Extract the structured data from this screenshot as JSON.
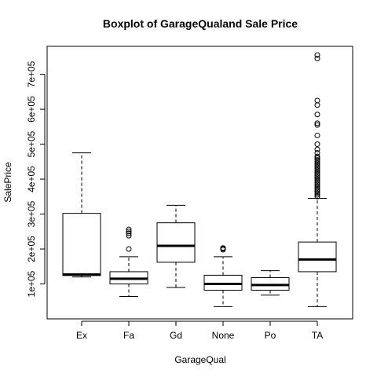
{
  "chart_data": {
    "type": "boxplot",
    "title": "Boxplot of GarageQualand Sale Price",
    "xlabel": "GarageQual",
    "ylabel": "SalePrice",
    "ylim": [
      0,
      780000
    ],
    "y_ticks": [
      100000,
      200000,
      300000,
      400000,
      500000,
      600000,
      700000
    ],
    "y_tick_labels": [
      "1e+05",
      "2e+05",
      "3e+05",
      "4e+05",
      "5e+05",
      "6e+05",
      "7e+05"
    ],
    "categories": [
      "Ex",
      "Fa",
      "Gd",
      "None",
      "Po",
      "TA"
    ],
    "boxes": [
      {
        "min": 120000,
        "q1": 124000,
        "median": 127000,
        "q3": 302000,
        "max": 475000,
        "outliers": []
      },
      {
        "min": 64000,
        "q1": 100000,
        "median": 115000,
        "q3": 135000,
        "max": 178000,
        "outliers": [
          200000,
          238000,
          245000,
          250000,
          256000
        ]
      },
      {
        "min": 90000,
        "q1": 162000,
        "median": 209000,
        "q3": 275000,
        "max": 325000,
        "outliers": []
      },
      {
        "min": 35000,
        "q1": 82000,
        "median": 100000,
        "q3": 125000,
        "max": 178000,
        "outliers": [
          198000,
          201000,
          203000
        ]
      },
      {
        "min": 68000,
        "q1": 82000,
        "median": 97000,
        "q3": 118000,
        "max": 138000,
        "outliers": []
      },
      {
        "min": 35000,
        "q1": 135000,
        "median": 170000,
        "q3": 220000,
        "max": 345000,
        "outliers": [
          350000,
          355000,
          360000,
          365000,
          370000,
          375000,
          380000,
          385000,
          390000,
          395000,
          400000,
          405000,
          410000,
          415000,
          420000,
          425000,
          430000,
          435000,
          440000,
          445000,
          450000,
          455000,
          460000,
          465000,
          475000,
          485000,
          500000,
          525000,
          555000,
          560000,
          585000,
          612000,
          625000,
          745000,
          755000
        ]
      }
    ],
    "grid": false
  }
}
